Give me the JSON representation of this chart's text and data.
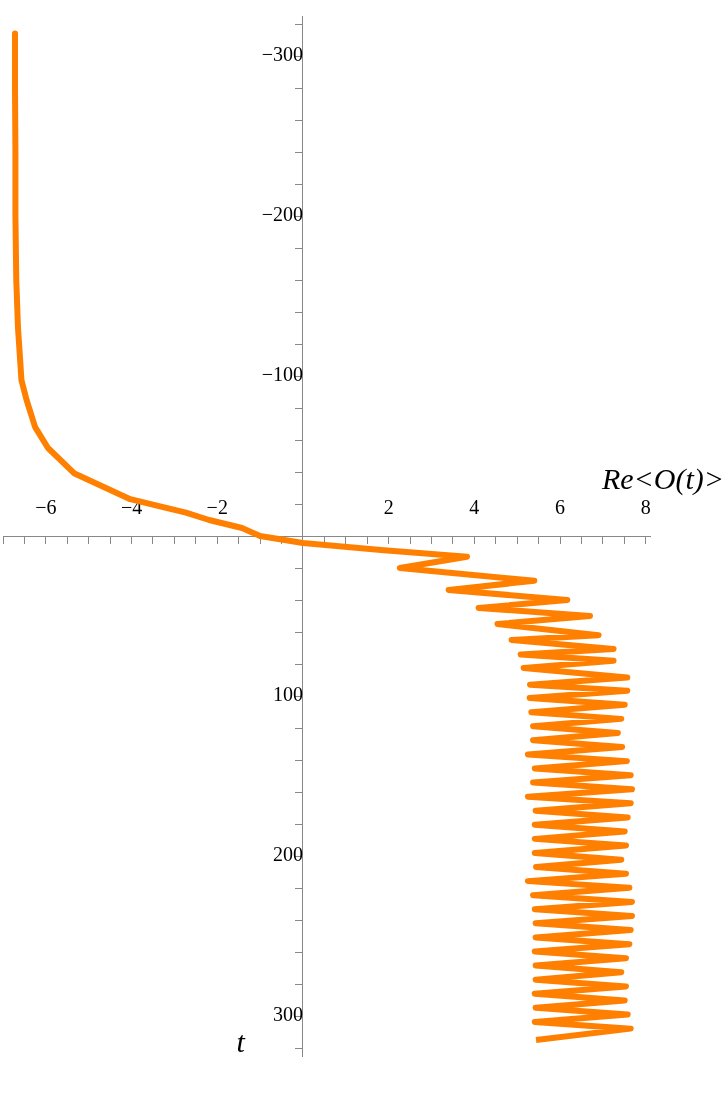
{
  "chart_data": {
    "type": "line",
    "xlabel": "Re<O(t)>",
    "ylabel": "t",
    "x": [
      -6.72,
      -6.72,
      -6.71,
      -6.71,
      -6.69,
      -6.65,
      -6.6,
      -6.57,
      -6.45,
      -6.25,
      -5.95,
      -5.33,
      -4.03,
      -2.73,
      -2.19,
      -1.42,
      -1.0,
      0,
      1.82,
      3.83,
      2.26,
      5.4,
      3.4,
      6.17,
      4.1,
      6.7,
      4.54,
      6.9,
      4.87,
      7.25,
      5.08,
      7.25,
      5.15,
      7.57,
      5.3,
      7.57,
      5.29,
      7.51,
      5.33,
      7.43,
      5.37,
      7.35,
      5.37,
      7.45,
      5.25,
      7.56,
      5.41,
      7.65,
      5.37,
      7.68,
      5.25,
      7.65,
      5.43,
      7.58,
      5.41,
      7.51,
      5.41,
      7.54,
      5.41,
      7.43,
      5.44,
      7.54,
      5.25,
      7.62,
      5.37,
      7.68,
      5.41,
      7.68,
      5.43,
      7.65,
      5.43,
      7.62,
      5.41,
      7.54,
      5.43,
      7.43,
      5.43,
      7.54,
      5.41,
      7.51,
      5.43,
      7.58,
      5.41,
      7.65,
      5.44
    ],
    "series": [
      {
        "color": "#ff8000",
        "values": [
          -314,
          -280,
          -240,
          -200,
          -160,
          -130,
          -110,
          -97.5,
          -85,
          -68,
          -55,
          -39,
          -23,
          -14.6,
          -10,
          -5,
          0,
          4.4,
          8.7,
          13,
          20,
          28,
          33.7,
          40,
          45,
          50,
          55,
          62,
          65,
          70.6,
          74,
          78,
          82.5,
          88.5,
          93,
          96.7,
          101.3,
          105.5,
          110.1,
          114.3,
          118.9,
          123.1,
          127.7,
          131.9,
          136.5,
          140.7,
          145.3,
          149.5,
          154.1,
          158.3,
          162.9,
          167.1,
          171.7,
          175.9,
          180.5,
          184.7,
          189.3,
          193.5,
          198.1,
          202.3,
          206.9,
          211.1,
          215.7,
          219.9,
          224.5,
          228.7,
          233.3,
          237.5,
          242.1,
          246.3,
          250.9,
          255.1,
          259.7,
          263.9,
          268.5,
          272.7,
          277.3,
          281.5,
          286.1,
          290.3,
          294.9,
          299.1,
          303.7,
          307.9,
          315
        ]
      }
    ],
    "xlim": [
      -7,
      8.1
    ],
    "ylim": [
      325,
      -325
    ],
    "yticks": [
      {
        "value": -320,
        "label": null
      },
      {
        "value": -300,
        "label": "−300"
      },
      {
        "value": -280,
        "label": null
      },
      {
        "value": -260,
        "label": null
      },
      {
        "value": -240,
        "label": null
      },
      {
        "value": -220,
        "label": null
      },
      {
        "value": -200,
        "label": "−200"
      },
      {
        "value": -180,
        "label": null
      },
      {
        "value": -160,
        "label": null
      },
      {
        "value": -140,
        "label": null
      },
      {
        "value": -120,
        "label": null
      },
      {
        "value": -100,
        "label": "−100"
      },
      {
        "value": -80,
        "label": null
      },
      {
        "value": -60,
        "label": null
      },
      {
        "value": -40,
        "label": null
      },
      {
        "value": -20,
        "label": null
      },
      {
        "value": 20,
        "label": null
      },
      {
        "value": 40,
        "label": null
      },
      {
        "value": 60,
        "label": null
      },
      {
        "value": 80,
        "label": null
      },
      100,
      {
        "value": 120,
        "label": null
      },
      {
        "value": 140,
        "label": null
      },
      {
        "value": 160,
        "label": null
      },
      {
        "value": 180,
        "label": null
      },
      200,
      {
        "value": 220,
        "label": null
      },
      {
        "value": 240,
        "label": null
      },
      {
        "value": 260,
        "label": null
      },
      {
        "value": 280,
        "label": null
      },
      300,
      {
        "value": 320,
        "label": null
      }
    ],
    "xticks": [
      {
        "value": -7,
        "label": null
      },
      {
        "value": -6.5,
        "label": null
      },
      {
        "value": -6,
        "label": "−6"
      },
      {
        "value": -5.5,
        "label": null
      },
      {
        "value": -5,
        "label": null
      },
      {
        "value": -4.5,
        "label": null
      },
      {
        "value": -4,
        "label": "−4"
      },
      {
        "value": -3.5,
        "label": null
      },
      {
        "value": -3,
        "label": null
      },
      {
        "value": -2.5,
        "label": null
      },
      {
        "value": -2,
        "label": "−2"
      },
      {
        "value": -1.5,
        "label": null
      },
      {
        "value": -1,
        "label": null
      },
      {
        "value": -0.5,
        "label": null
      },
      {
        "value": 0.5,
        "label": null
      },
      {
        "value": 1,
        "label": null
      },
      {
        "value": 1.5,
        "label": null
      },
      2,
      {
        "value": 2.5,
        "label": null
      },
      {
        "value": 3,
        "label": null
      },
      {
        "value": 3.5,
        "label": null
      },
      4,
      {
        "value": 4.5,
        "label": null
      },
      {
        "value": 5,
        "label": null
      },
      {
        "value": 5.5,
        "label": null
      },
      6,
      {
        "value": 6.5,
        "label": null
      },
      {
        "value": 7,
        "label": null
      },
      {
        "value": 7.5,
        "label": null
      },
      8
    ],
    "grid": false,
    "legend": false,
    "marker": "none",
    "line_style": "solid"
  }
}
